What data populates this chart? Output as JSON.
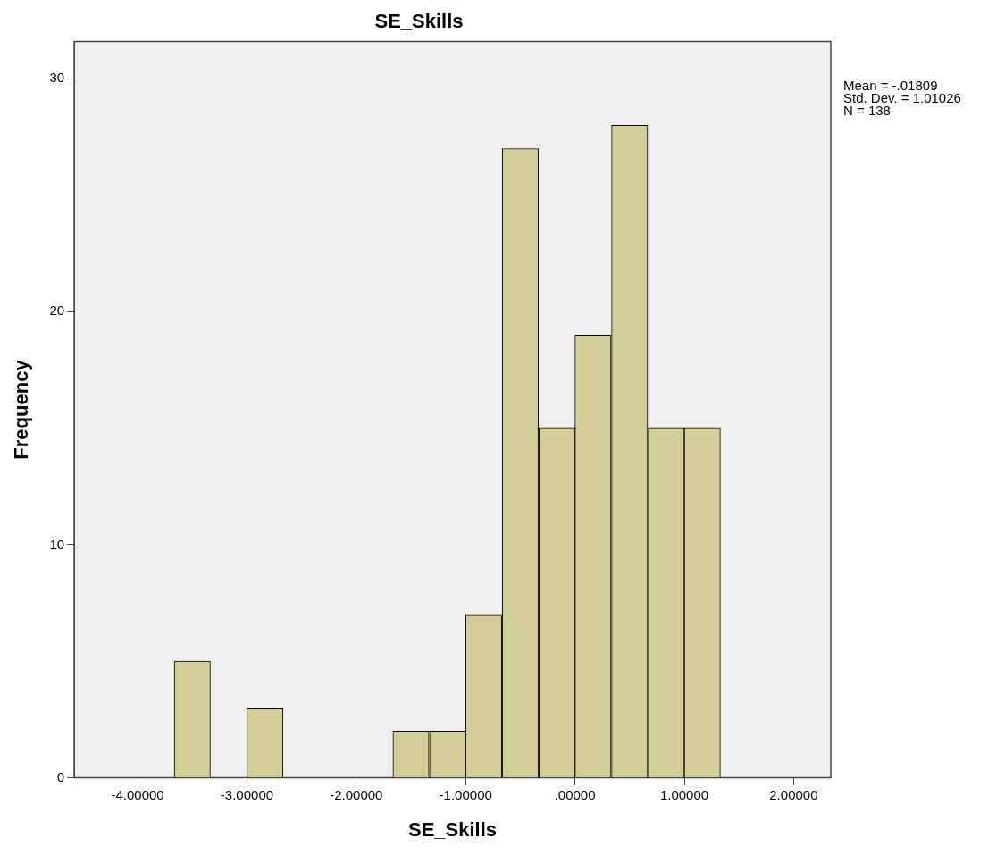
{
  "chart_data": {
    "type": "histogram",
    "title": "SE_Skills",
    "xlabel": "SE_Skills",
    "ylabel": "Frequency",
    "bins": [
      -3.67,
      -3.33,
      -3,
      -2.67,
      -2.33,
      -2,
      -1.67,
      -1.33,
      -1,
      -0.67,
      -0.33,
      0,
      0.33,
      0.67,
      1,
      1.33
    ],
    "values": [
      5,
      0,
      3,
      0,
      0,
      0,
      2,
      2,
      7,
      27,
      15,
      19,
      28,
      15,
      15
    ],
    "color": "#d3ce97",
    "xlim": [
      -4.58,
      2.34
    ],
    "xticks": [
      {
        "value": -4,
        "label": "-4.00000"
      },
      {
        "value": -3,
        "label": "-3.00000"
      },
      {
        "value": -2,
        "label": "-2.00000"
      },
      {
        "value": -1,
        "label": "-1.00000"
      },
      {
        "value": 0,
        "label": ".00000"
      },
      {
        "value": 1,
        "label": "1.00000"
      },
      {
        "value": 2,
        "label": "2.00000"
      }
    ],
    "ylim": [
      0,
      31.6
    ],
    "yticks": [
      0,
      10,
      20,
      30
    ],
    "grid": false,
    "legend": false,
    "annotations": [
      "Mean = -.01809",
      "Std. Dev. = 1.01026",
      "N = 138"
    ]
  }
}
